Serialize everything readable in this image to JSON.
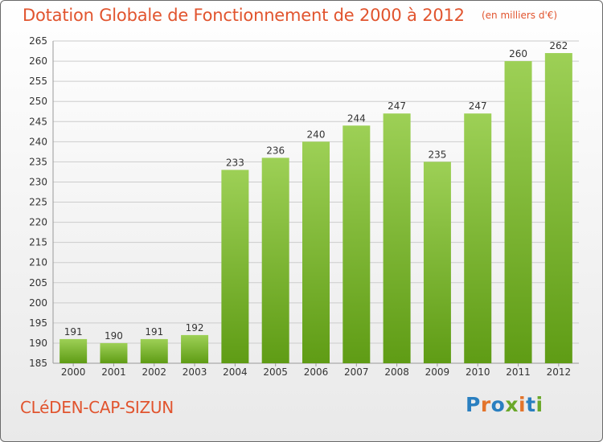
{
  "title": "Dotation Globale de Fonctionnement de 2000 à 2012",
  "subtitle": "(en milliers d'€)",
  "commune": "CLéDEN-CAP-SIZUN",
  "logo": {
    "text": "Proxiti",
    "colors": [
      "#2a7fc0",
      "#e3742b",
      "#2a7fc0",
      "#6aa82a",
      "#e3742b",
      "#2a7fc0",
      "#6aa82a"
    ]
  },
  "colors": {
    "bar_top": "#9dd056",
    "bar_bottom": "#5f9c15",
    "title": "#e1542e",
    "grid": "#cccccc"
  },
  "chart_data": {
    "type": "bar",
    "categories": [
      "2000",
      "2001",
      "2002",
      "2003",
      "2004",
      "2005",
      "2006",
      "2007",
      "2008",
      "2009",
      "2010",
      "2011",
      "2012"
    ],
    "values": [
      191,
      190,
      191,
      192,
      233,
      236,
      240,
      244,
      247,
      235,
      247,
      260,
      262
    ],
    "ylim": [
      185,
      265
    ],
    "yticks": [
      185,
      190,
      195,
      200,
      205,
      210,
      215,
      220,
      225,
      230,
      235,
      240,
      245,
      250,
      255,
      260,
      265
    ],
    "grid": true
  }
}
